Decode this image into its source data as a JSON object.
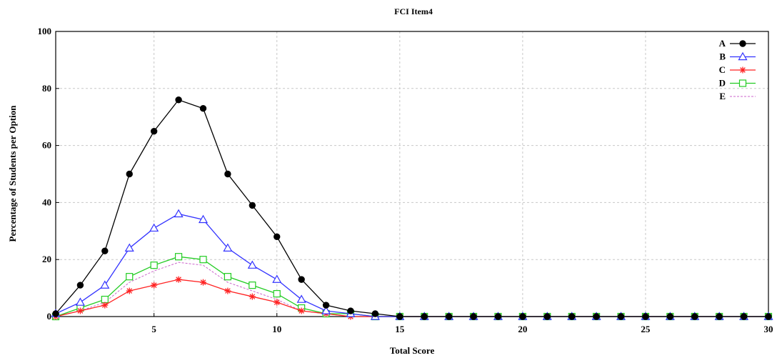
{
  "chart_data": {
    "type": "line",
    "title": "FCI Item4",
    "xlabel": "Total Score",
    "ylabel": "Percentage of Students per Option",
    "xlim": [
      1,
      30
    ],
    "ylim": [
      0,
      100
    ],
    "xticks": [
      5,
      10,
      15,
      20,
      25,
      30
    ],
    "yticks": [
      0,
      20,
      40,
      60,
      80,
      100
    ],
    "grid": true,
    "legend_position": "top-right",
    "x": [
      1,
      2,
      3,
      4,
      5,
      6,
      7,
      8,
      9,
      10,
      11,
      12,
      13,
      14,
      15,
      16,
      17,
      18,
      19,
      20,
      21,
      22,
      23,
      24,
      25,
      26,
      27,
      28,
      29,
      30
    ],
    "series": [
      {
        "name": "A",
        "color": "#000000",
        "marker": "circle",
        "dashed": false,
        "values": [
          1,
          11,
          23,
          50,
          65,
          76,
          73,
          50,
          39,
          28,
          13,
          4,
          2,
          1,
          0,
          0,
          0,
          0,
          0,
          0,
          0,
          0,
          0,
          0,
          0,
          0,
          0,
          0,
          0,
          0
        ]
      },
      {
        "name": "B",
        "color": "#3333ff",
        "marker": "triangle",
        "dashed": false,
        "values": [
          1,
          5,
          11,
          24,
          31,
          36,
          34,
          24,
          18,
          13,
          6,
          2,
          1,
          0,
          0,
          0,
          0,
          0,
          0,
          0,
          0,
          0,
          0,
          0,
          0,
          0,
          0,
          0,
          0,
          0
        ]
      },
      {
        "name": "C",
        "color": "#ff2222",
        "marker": "star",
        "dashed": false,
        "values": [
          0,
          2,
          4,
          9,
          11,
          13,
          12,
          9,
          7,
          5,
          2,
          1,
          0,
          0,
          0,
          0,
          0,
          0,
          0,
          0,
          0,
          0,
          0,
          0,
          0,
          0,
          0,
          0,
          0,
          0
        ]
      },
      {
        "name": "D",
        "color": "#22cc22",
        "marker": "square",
        "dashed": false,
        "values": [
          0,
          3,
          6,
          14,
          18,
          21,
          20,
          14,
          11,
          8,
          3,
          1,
          1,
          0,
          0,
          0,
          0,
          0,
          0,
          0,
          0,
          0,
          0,
          0,
          0,
          0,
          0,
          0,
          0,
          0
        ]
      },
      {
        "name": "E",
        "color": "#cc66cc",
        "marker": "none",
        "dashed": true,
        "values": [
          0,
          2,
          5,
          12,
          16,
          19,
          18,
          12,
          9,
          6,
          2,
          1,
          0,
          0,
          0,
          0,
          0,
          0,
          0,
          0,
          0,
          0,
          0,
          0,
          0,
          0,
          0,
          0,
          0,
          0
        ]
      }
    ]
  }
}
